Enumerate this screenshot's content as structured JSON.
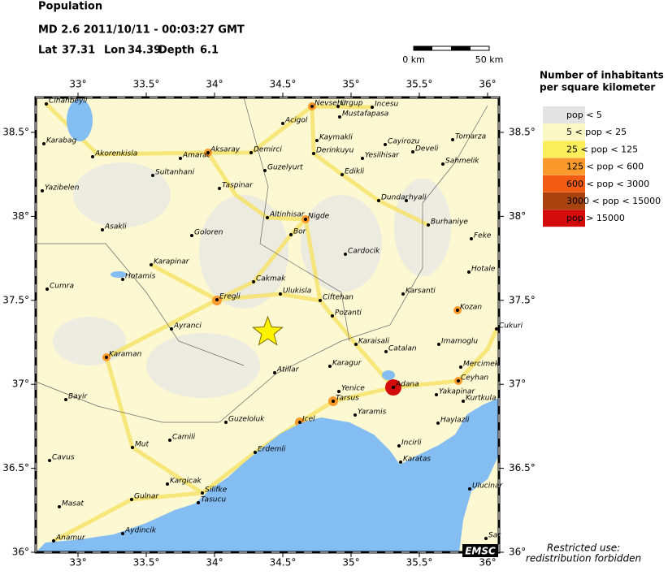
{
  "header": {
    "title": "Population",
    "event": "MD 2.6  2011/10/11 - 00:03:27 GMT",
    "lat_label": "Lat",
    "lat": 37.31,
    "lon_label": "Lon",
    "lon": 34.39,
    "depth_label": "Depth",
    "depth": 6.1
  },
  "scale": {
    "start": "0 km",
    "end": "50 km"
  },
  "lon_ticks": [
    {
      "value": 33,
      "label": "33°"
    },
    {
      "value": 33.5,
      "label": "33.5°"
    },
    {
      "value": 34,
      "label": "34°"
    },
    {
      "value": 34.5,
      "label": "34.5°"
    },
    {
      "value": 35,
      "label": "35°"
    },
    {
      "value": 35.5,
      "label": "35.5°"
    },
    {
      "value": 36,
      "label": "36°"
    }
  ],
  "lat_ticks": [
    {
      "value": 36,
      "label": "36°"
    },
    {
      "value": 36.5,
      "label": "36.5°"
    },
    {
      "value": 37,
      "label": "37°"
    },
    {
      "value": 37.5,
      "label": "37.5°"
    },
    {
      "value": 38,
      "label": "38°"
    },
    {
      "value": 38.5,
      "label": "38.5°"
    }
  ],
  "legend": {
    "title": [
      "Number of inhabitants",
      "per square kilometer"
    ],
    "items": [
      {
        "label": "pop < 5",
        "color": "#e3e3e3"
      },
      {
        "label": "5 < pop < 25",
        "color": "#fbf8c6"
      },
      {
        "label": "25 < pop < 125",
        "color": "#fbee5c"
      },
      {
        "label": "125 < pop < 600",
        "color": "#fb9a2c"
      },
      {
        "label": "600 < pop < 3000",
        "color": "#f25c12"
      },
      {
        "label": "3000 < pop < 15000",
        "color": "#a8420f"
      },
      {
        "label": "pop > 15000",
        "color": "#d40b0b"
      }
    ]
  },
  "cities": [
    "Cihanbeyli",
    "Karabag",
    "Akorenkisla",
    "Yazibelen",
    "Sultanhani",
    "Amarat",
    "Aksaray",
    "Demirci",
    "Acigol",
    "Nevsehir",
    "Urgup",
    "Mustafapasa",
    "Incesu",
    "Kaymakli",
    "Cayirozu",
    "Tomarza",
    "Derinkuyu",
    "Yesilhisar",
    "Develi",
    "Sahmelik",
    "Guzelyurt",
    "Edikli",
    "Taspinar",
    "Dundar",
    "hyali",
    "Asakli",
    "Goloren",
    "Altinhisar",
    "Nigde",
    "Bor",
    "Burhaniye",
    "Feke",
    "Karapinar",
    "Hotamis",
    "Cardocik",
    "Hotale",
    "Cakmak",
    "Cumra",
    "Ulukisla",
    "Eregli",
    "Ciftehan",
    "Karsanti",
    "Kozan",
    "Pozanti",
    "Ayranci",
    "Cukuri",
    "Karaisali",
    "Imamoglu",
    "Karaman",
    "Catalan",
    "Karagur",
    "Mercimek",
    "Atillar",
    "Ceyhan",
    "Adana",
    "Yenice",
    "Tarsus",
    "Yakapinar",
    "Kurtkula",
    "Bayir",
    "Yaramis",
    "Icel",
    "Guzeloluk",
    "Haylazli",
    "Camili",
    "Incirli",
    "Mut",
    "Erdemli",
    "Karatas",
    "Cavus",
    "Kargicak",
    "Ulucinar",
    "Silifke",
    "Gulnar",
    "Tasucu",
    "Masat",
    "Aydincik",
    "Anamur",
    "Sar"
  ],
  "footer": {
    "logo": "EMSC",
    "notice": [
      "Restricted use:",
      "redistribution forbidden"
    ]
  }
}
